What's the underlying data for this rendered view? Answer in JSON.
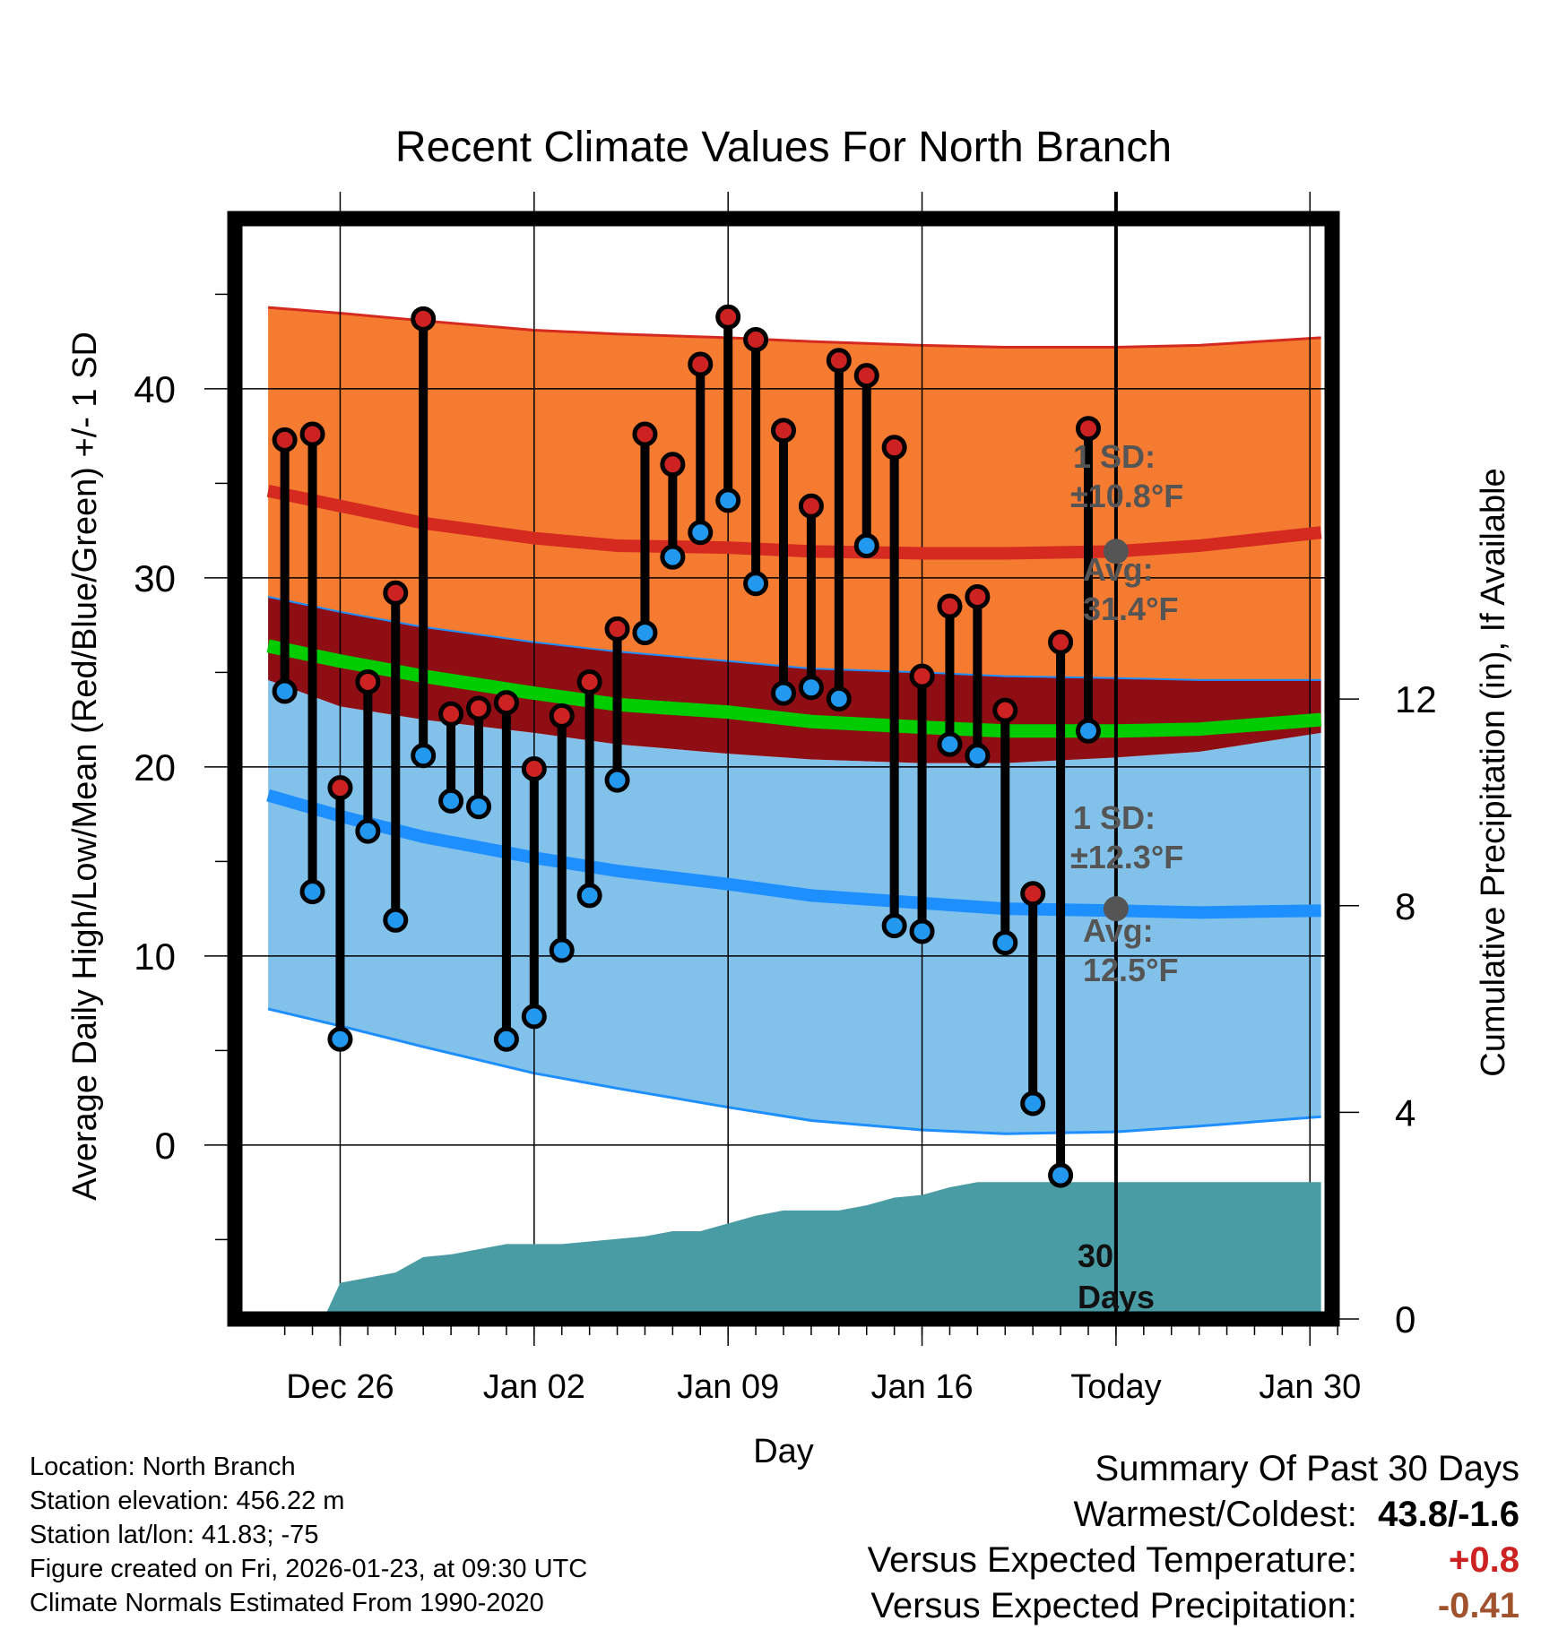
{
  "chart_data": {
    "type": "range-bar-with-bands",
    "title": "Recent Climate Values For North Branch",
    "xlabel": "Day",
    "ylabel_left": "Average Daily High/Low/Mean (Red/Blue/Green) +/- 1 SD",
    "ylabel_right": "Cumulative Precipitation (in), If Available",
    "xlim": [
      -3.8,
      35.8
    ],
    "ylim_left": [
      -9.2,
      49.0
    ],
    "ylim_right": [
      0,
      21.3
    ],
    "x_ticks": [
      {
        "x": 0,
        "label": "Dec 26"
      },
      {
        "x": 7,
        "label": "Jan 02"
      },
      {
        "x": 14,
        "label": "Jan 09"
      },
      {
        "x": 21,
        "label": "Jan 16"
      },
      {
        "x": 28,
        "label": "Today"
      },
      {
        "x": 35,
        "label": "Jan 30"
      }
    ],
    "y_ticks_left": [
      0,
      10,
      20,
      30,
      40
    ],
    "y_ticks_right": [
      0,
      4,
      8,
      12
    ],
    "today_x": 28,
    "days": [
      -2,
      -1,
      0,
      1,
      2,
      3,
      4,
      5,
      6,
      7,
      8,
      9,
      10,
      11,
      12,
      13,
      14,
      15,
      16,
      17,
      18,
      19,
      20,
      21,
      22,
      23,
      24,
      25,
      26,
      27
    ],
    "highs": [
      37.3,
      37.6,
      18.9,
      24.5,
      29.2,
      43.7,
      22.8,
      23.1,
      23.4,
      19.9,
      22.7,
      24.5,
      27.3,
      37.6,
      36.0,
      41.3,
      43.8,
      42.6,
      37.8,
      33.8,
      41.5,
      40.7,
      36.9,
      24.8,
      28.5,
      29.0,
      23.0,
      13.3,
      26.6,
      37.9
    ],
    "lows": [
      24.0,
      13.4,
      5.6,
      16.6,
      11.9,
      20.6,
      18.2,
      17.9,
      5.6,
      6.8,
      10.3,
      13.2,
      19.3,
      27.1,
      31.1,
      32.4,
      34.1,
      29.7,
      23.9,
      24.2,
      23.6,
      31.7,
      11.6,
      11.3,
      21.2,
      20.6,
      10.7,
      2.2,
      -1.6,
      21.9
    ],
    "normals": {
      "x": [
        -2.6,
        0,
        3,
        7,
        10,
        14,
        17,
        21,
        24,
        28,
        31,
        35.4
      ],
      "high_mean": [
        34.6,
        33.8,
        32.9,
        32.1,
        31.7,
        31.6,
        31.4,
        31.3,
        31.3,
        31.4,
        31.7,
        32.4
      ],
      "high_sd_upper": [
        44.3,
        44.0,
        43.6,
        43.1,
        42.9,
        42.7,
        42.5,
        42.3,
        42.2,
        42.2,
        42.3,
        42.7
      ],
      "high_sd_lower": [
        29.0,
        28.2,
        27.4,
        26.6,
        26.1,
        25.6,
        25.2,
        25.0,
        24.8,
        24.7,
        24.6,
        24.6
      ],
      "mean": [
        26.4,
        25.6,
        24.8,
        23.9,
        23.3,
        22.9,
        22.4,
        22.1,
        21.9,
        21.9,
        22.0,
        22.5
      ],
      "low_sd_upper": [
        24.6,
        23.2,
        22.5,
        21.8,
        21.2,
        20.7,
        20.4,
        20.2,
        20.2,
        20.5,
        20.8,
        21.8
      ],
      "low_mean": [
        18.5,
        17.4,
        16.3,
        15.2,
        14.5,
        13.8,
        13.2,
        12.8,
        12.5,
        12.4,
        12.3,
        12.4
      ],
      "low_sd_lower": [
        7.2,
        6.3,
        5.2,
        3.8,
        3.0,
        2.0,
        1.3,
        0.8,
        0.6,
        0.7,
        1.0,
        1.5
      ]
    },
    "precip_cumulative": {
      "x": [
        -0.6,
        0,
        2,
        3,
        4,
        5,
        6,
        7,
        8,
        9,
        10,
        11,
        12,
        13,
        14,
        15,
        16,
        17,
        18,
        19,
        20,
        21,
        22,
        23,
        24,
        25,
        26,
        27,
        28,
        35.4
      ],
      "y": [
        0,
        0.7,
        0.9,
        1.2,
        1.25,
        1.35,
        1.45,
        1.45,
        1.45,
        1.5,
        1.55,
        1.6,
        1.7,
        1.7,
        1.85,
        2.0,
        2.1,
        2.1,
        2.1,
        2.2,
        2.35,
        2.4,
        2.55,
        2.65,
        2.65,
        2.65,
        2.65,
        2.65,
        2.65,
        2.65
      ]
    },
    "annotations": {
      "high_sd": "1 SD:",
      "high_sd_value": "±10.8°F",
      "high_avg": "Avg:",
      "high_avg_value": "31.4°F",
      "low_sd": "1 SD:",
      "low_sd_value": "±12.3°F",
      "low_avg": "Avg:",
      "low_avg_value": "12.5°F",
      "period_line1": "30",
      "period_line2": "Days",
      "high_avg_y": 31.4,
      "low_avg_y": 12.5
    },
    "colors": {
      "high_band": "#F47B30",
      "high_line": "#D42A20",
      "mean_band": "#8E0E14",
      "mean_line": "#00CC00",
      "low_band": "#82C2EA",
      "low_line": "#1E8FFF",
      "precip": "#4A9CA4",
      "high_dot": "#CC2222",
      "low_dot": "#2299EE",
      "annotation": "#555555",
      "dev_temp": "#CC2222",
      "dev_precip": "#A0522D"
    }
  },
  "footer": {
    "location": "Location: North Branch",
    "elevation": "Station elevation: 456.22 m",
    "latlon": "Station lat/lon: 41.83; -75",
    "created": "Figure created on Fri, 2026-01-23, at 09:30 UTC",
    "normals": "Climate Normals Estimated From 1990-2020"
  },
  "summary": {
    "heading": "Summary Of Past 30 Days",
    "warm_cold_label": "Warmest/Coldest:",
    "warm_cold_value": "43.8/-1.6",
    "temp_label": "Versus Expected Temperature:",
    "temp_value": "+0.8",
    "precip_label": "Versus Expected Precipitation:",
    "precip_value": "-0.41"
  }
}
